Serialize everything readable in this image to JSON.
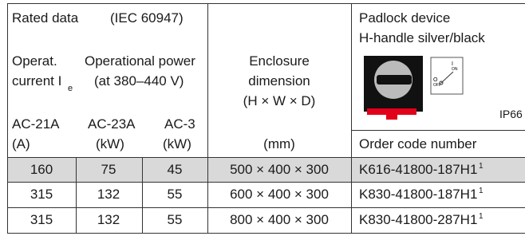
{
  "header": {
    "rated_data": "Rated data",
    "standard": "(IEC 60947)",
    "operat_current": [
      "Operat.",
      "current I"
    ],
    "current_subscript": "e",
    "operational_power": [
      "Operational power",
      "(at 380–440 V)"
    ],
    "enclosure": [
      "Enclosure",
      "dimension",
      "(H × W × D)"
    ],
    "padlock": [
      "Padlock device",
      "H-handle silver/black"
    ],
    "switch_i": "I",
    "switch_on": "ON",
    "switch_o": "O",
    "switch_off": "OFF",
    "ip": "IP66",
    "units": [
      [
        "AC-21A",
        "(A)"
      ],
      [
        "AC-23A",
        "(kW)"
      ],
      [
        "AC-3",
        "(kW)"
      ]
    ],
    "dimension_unit": "(mm)",
    "order_code": "Order code number"
  },
  "rows": [
    {
      "cells": [
        "160",
        "75",
        "45",
        "500 × 400 × 300",
        "K616-41800-187H1"
      ],
      "note": "1"
    },
    {
      "cells": [
        "315",
        "132",
        "55",
        "600 × 400 × 300",
        "K830-41800-187H1"
      ],
      "note": "1"
    },
    {
      "cells": [
        "315",
        "132",
        "55",
        "800 × 400 × 300",
        "K830-41800-287H1"
      ],
      "note": "1"
    }
  ]
}
